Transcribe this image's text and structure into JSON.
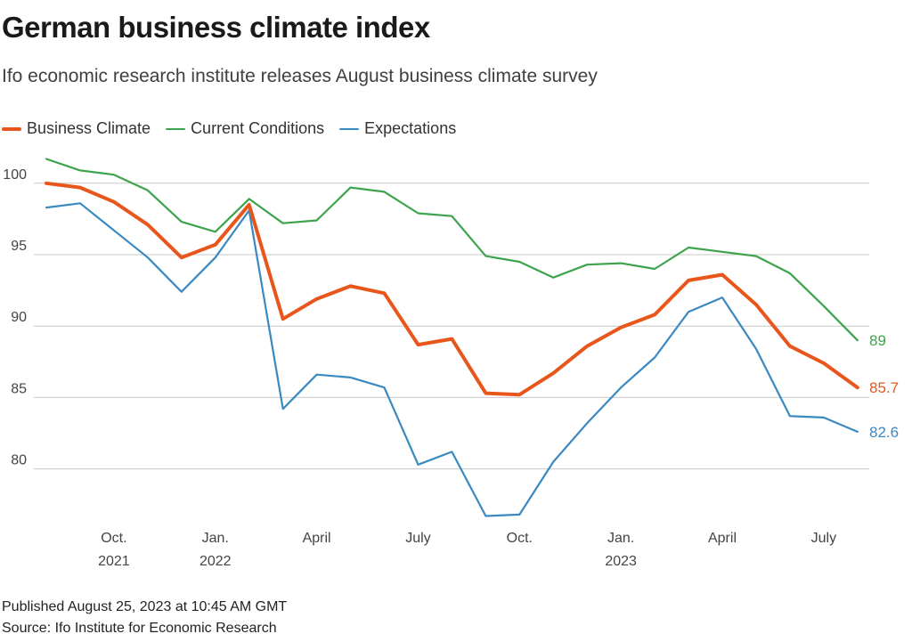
{
  "header": {
    "title": "German business climate index",
    "subtitle": "Ifo economic research institute releases August business climate survey"
  },
  "footer": {
    "published": "Published August 25, 2023 at 10:45 AM GMT",
    "source": "Source: Ifo Institute for Economic Research"
  },
  "chart_data": {
    "type": "line",
    "x": [
      "2021-08",
      "2021-09",
      "2021-10",
      "2021-11",
      "2021-12",
      "2022-01",
      "2022-02",
      "2022-03",
      "2022-04",
      "2022-05",
      "2022-06",
      "2022-07",
      "2022-08",
      "2022-09",
      "2022-10",
      "2022-11",
      "2022-12",
      "2023-01",
      "2023-02",
      "2023-03",
      "2023-04",
      "2023-05",
      "2023-06",
      "2023-07",
      "2023-08"
    ],
    "ylim": [
      76,
      102
    ],
    "y_ticks": [
      80,
      85,
      90,
      95,
      100
    ],
    "grid": true,
    "legend_position": "top-left",
    "x_ticks": [
      {
        "x": "2021-10",
        "label": "Oct.",
        "sublabel": "2021"
      },
      {
        "x": "2022-01",
        "label": "Jan.",
        "sublabel": "2022"
      },
      {
        "x": "2022-04",
        "label": "April",
        "sublabel": ""
      },
      {
        "x": "2022-07",
        "label": "July",
        "sublabel": ""
      },
      {
        "x": "2022-10",
        "label": "Oct.",
        "sublabel": ""
      },
      {
        "x": "2023-01",
        "label": "Jan.",
        "sublabel": "2023"
      },
      {
        "x": "2023-04",
        "label": "April",
        "sublabel": ""
      },
      {
        "x": "2023-07",
        "label": "July",
        "sublabel": ""
      }
    ],
    "series": [
      {
        "name": "Business Climate",
        "color": "#e8561c",
        "width": 4,
        "end_label": "85.7",
        "values": [
          100.0,
          99.7,
          98.7,
          97.1,
          94.8,
          95.7,
          98.5,
          90.5,
          91.9,
          92.8,
          92.3,
          88.7,
          89.1,
          85.3,
          85.2,
          86.7,
          88.6,
          89.9,
          90.8,
          93.2,
          93.6,
          91.5,
          88.6,
          87.4,
          85.7
        ]
      },
      {
        "name": "Current Conditions",
        "color": "#3da34d",
        "width": 2.2,
        "end_label": "89",
        "values": [
          101.7,
          100.9,
          100.6,
          99.5,
          97.3,
          96.6,
          98.9,
          97.2,
          97.4,
          99.7,
          99.4,
          97.9,
          97.7,
          94.9,
          94.5,
          93.4,
          94.3,
          94.4,
          94.0,
          95.5,
          95.2,
          94.9,
          93.7,
          91.4,
          89.0
        ]
      },
      {
        "name": "Expectations",
        "color": "#3a89c1",
        "width": 2.2,
        "end_label": "82.6",
        "values": [
          98.3,
          98.6,
          96.7,
          94.8,
          92.4,
          94.8,
          98.1,
          84.2,
          86.6,
          86.4,
          85.7,
          80.3,
          81.2,
          76.7,
          76.8,
          80.5,
          83.2,
          85.7,
          87.8,
          91.0,
          92.0,
          88.4,
          83.7,
          83.6,
          82.6
        ]
      }
    ]
  }
}
